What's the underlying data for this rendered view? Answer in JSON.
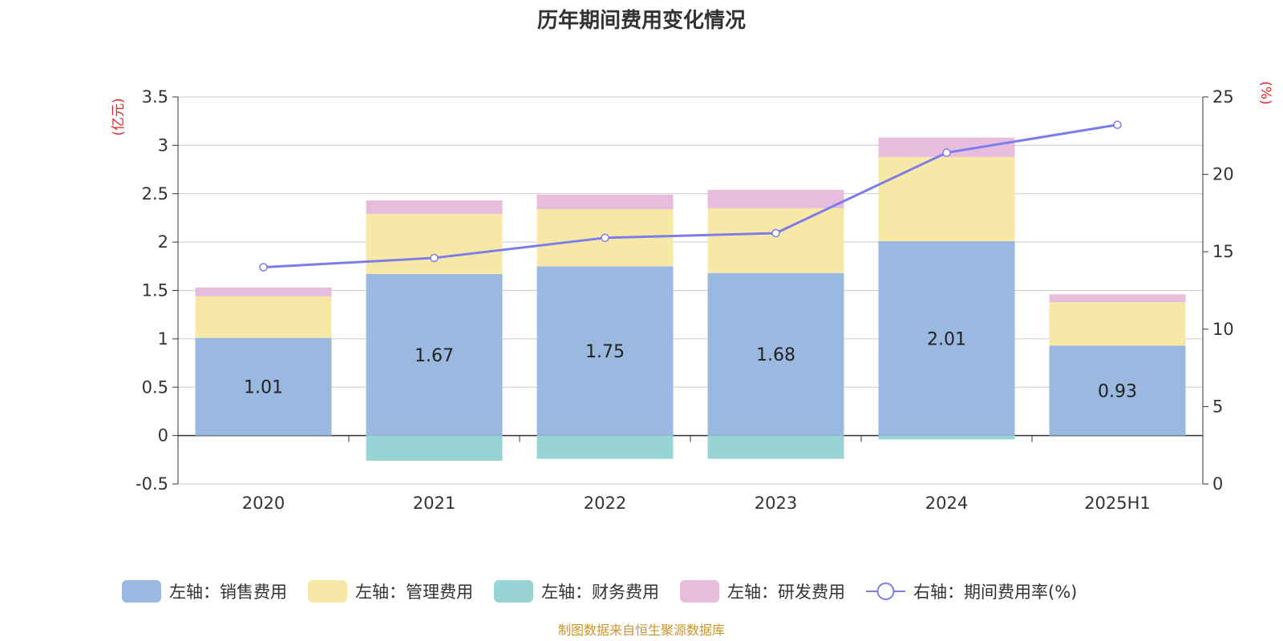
{
  "chart_data": {
    "type": "bar",
    "title": "历年期间费用变化情况",
    "categories": [
      "2020",
      "2021",
      "2022",
      "2023",
      "2024",
      "2025H1"
    ],
    "left_axis": {
      "unit": "(亿元)",
      "ylim": [
        -0.5,
        3.5
      ],
      "ticks": [
        "-0.5",
        "0",
        "0.5",
        "1",
        "1.5",
        "2",
        "2.5",
        "3",
        "3.5"
      ]
    },
    "right_axis": {
      "unit": "(%)",
      "ylim": [
        0,
        25
      ],
      "ticks": [
        "0",
        "5",
        "10",
        "15",
        "20",
        "25"
      ]
    },
    "grid": true,
    "legend_position": "bottom",
    "series": [
      {
        "name": "左轴：销售费用",
        "type": "bar",
        "axis": "left",
        "color": "#9bb8e0",
        "values": [
          1.01,
          1.67,
          1.75,
          1.68,
          2.01,
          0.93
        ],
        "labels": [
          "1.01",
          "1.67",
          "1.75",
          "1.68",
          "2.01",
          "0.93"
        ]
      },
      {
        "name": "左轴：管理费用",
        "type": "bar",
        "axis": "left",
        "color": "#f8e8a8",
        "values": [
          0.43,
          0.62,
          0.59,
          0.67,
          0.87,
          0.45
        ]
      },
      {
        "name": "左轴：财务费用",
        "type": "bar",
        "axis": "left",
        "color": "#98d4d4",
        "values": [
          0.0,
          -0.26,
          -0.24,
          -0.24,
          -0.04,
          0.0
        ]
      },
      {
        "name": "左轴：研发费用",
        "type": "bar",
        "axis": "left",
        "color": "#e8bcdc",
        "values": [
          0.09,
          0.14,
          0.15,
          0.19,
          0.2,
          0.08
        ]
      },
      {
        "name": "右轴：期间费用率(%)",
        "type": "line",
        "axis": "right",
        "color": "#7b7ee8",
        "values": [
          14.0,
          14.6,
          15.9,
          16.2,
          21.4,
          23.2
        ]
      }
    ],
    "source": "制图数据来自恒生聚源数据库"
  }
}
